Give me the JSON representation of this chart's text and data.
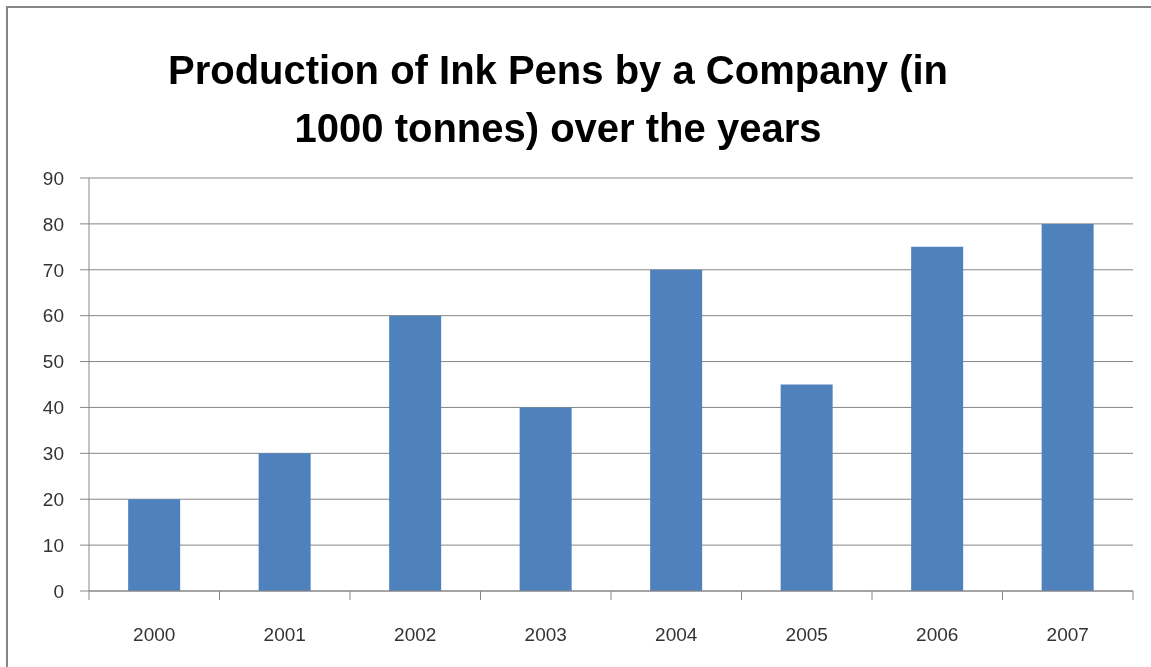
{
  "chart_data": {
    "type": "bar",
    "title": "Production of Ink Pens by a Company (in 1000 tonnes) over the years",
    "categories": [
      "2000",
      "2001",
      "2002",
      "2003",
      "2004",
      "2005",
      "2006",
      "2007"
    ],
    "values": [
      20,
      30,
      60,
      40,
      70,
      45,
      75,
      80
    ],
    "color": "#4f81bd",
    "ylim": [
      0,
      90
    ],
    "yticks": [
      0,
      10,
      20,
      30,
      40,
      50,
      60,
      70,
      80,
      90
    ],
    "grid": "y"
  }
}
